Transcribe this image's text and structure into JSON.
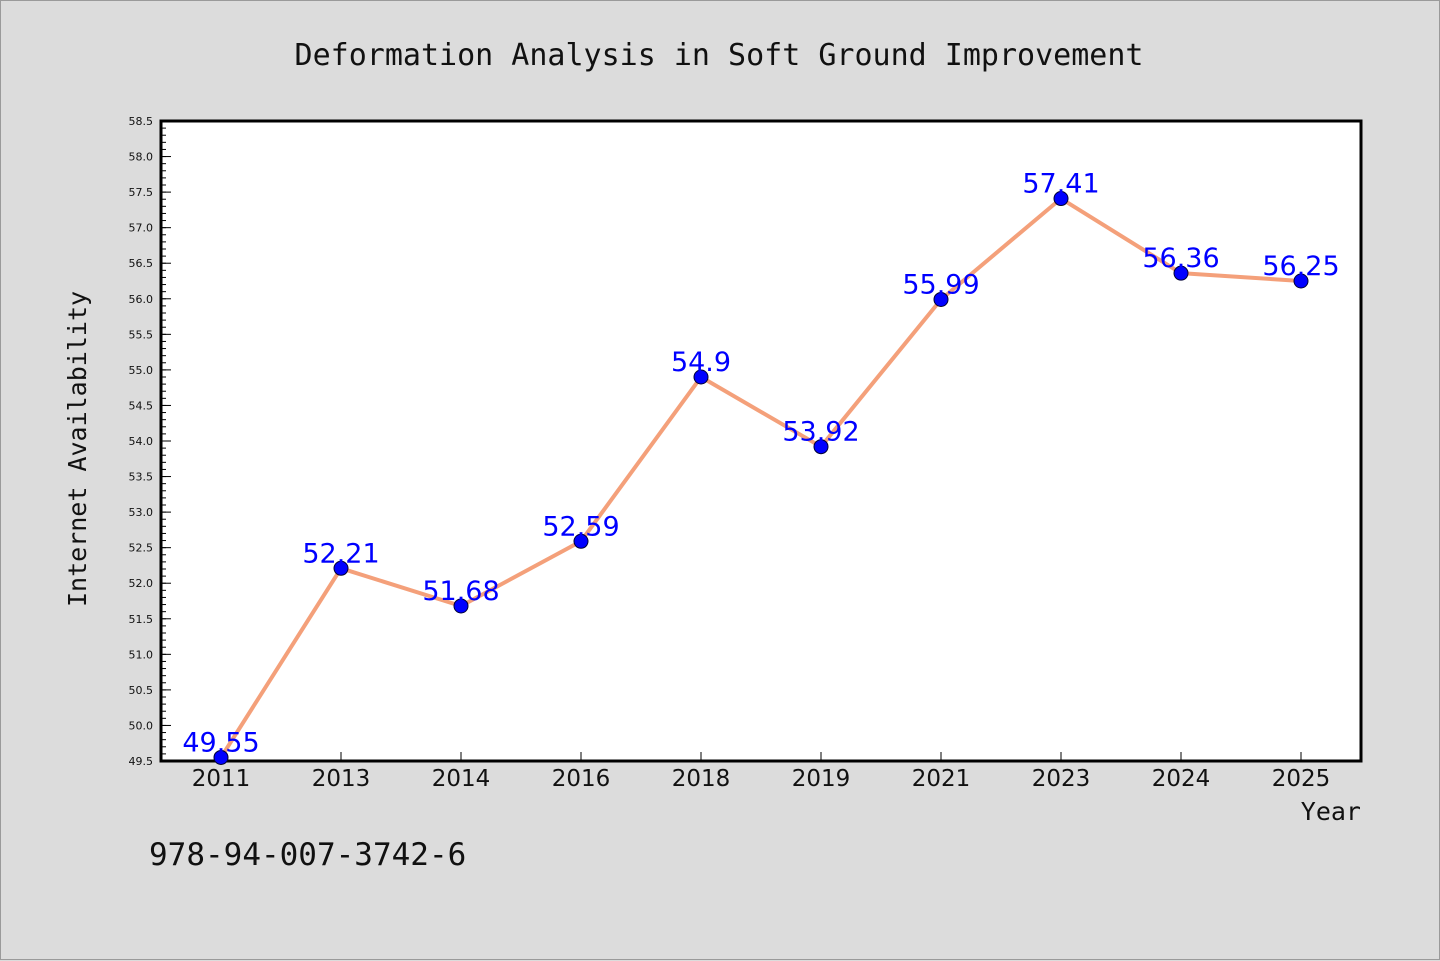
{
  "chart_data": {
    "type": "line",
    "title": "Deformation Analysis in Soft Ground Improvement",
    "xlabel": "Year",
    "ylabel": "Internet Availability",
    "categories": [
      "2011",
      "2013",
      "2014",
      "2016",
      "2018",
      "2019",
      "2021",
      "2023",
      "2024",
      "2025"
    ],
    "series": [
      {
        "values": [
          49.55,
          52.21,
          51.68,
          52.59,
          54.9,
          53.92,
          55.99,
          57.41,
          56.36,
          56.25
        ],
        "data_labels": [
          "49.55",
          "52.21",
          "51.68",
          "52.59",
          "54.9",
          "53.92",
          "55.99",
          "57.41",
          "56.36",
          "56.25"
        ],
        "line_color": "#f4a07a",
        "marker_color": "#0000ff"
      }
    ],
    "ylim": [
      49.5,
      58.5
    ],
    "yticks": [
      "49.5",
      "50.0",
      "50.5",
      "51.0",
      "51.5",
      "52.0",
      "52.5",
      "53.0",
      "53.5",
      "54.0",
      "54.5",
      "55.0",
      "55.5",
      "56.0",
      "56.5",
      "57.0",
      "57.5",
      "58.0",
      "58.5"
    ],
    "grid": false,
    "legend": "none"
  },
  "footer_code": "978-94-007-3742-6",
  "colors": {
    "background": "#dcdcdc",
    "plot_background": "#ffffff",
    "line": "#f4a07a",
    "marker": "#0000ff",
    "label": "#0000ff"
  }
}
